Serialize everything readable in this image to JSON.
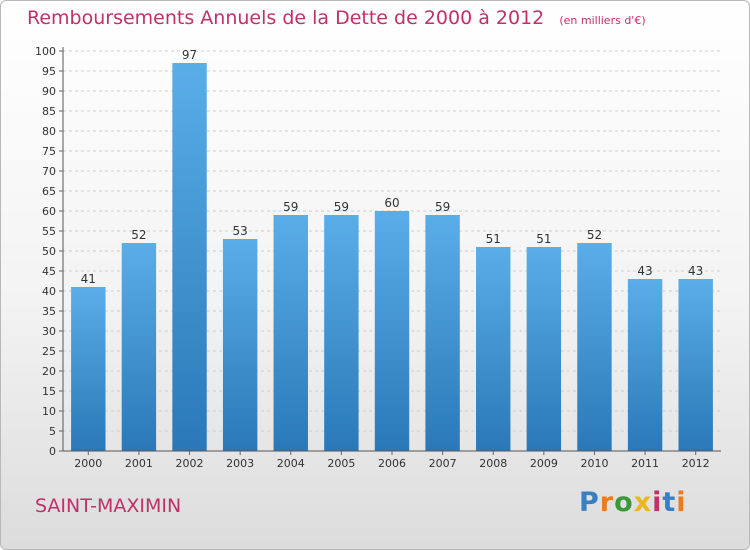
{
  "header": {
    "title": "Remboursements Annuels de la Dette de 2000 à 2012",
    "unit_note": "(en milliers d'€)"
  },
  "footer": {
    "commune": "SAINT-MAXIMIN",
    "logo": "Proxiti"
  },
  "colors": {
    "title": "#c0306a",
    "bar_top": "#5aaee8",
    "bar_bottom": "#2a78b8",
    "logo_letters": [
      "#3a7fc1",
      "#e87c1e",
      "#3a9a3a",
      "#e8b81e",
      "#c0306a",
      "#3a7fc1",
      "#e87c1e"
    ]
  },
  "chart_data": {
    "type": "bar",
    "categories": [
      "2000",
      "2001",
      "2002",
      "2003",
      "2004",
      "2005",
      "2006",
      "2007",
      "2008",
      "2009",
      "2010",
      "2011",
      "2012"
    ],
    "values": [
      41,
      52,
      97,
      53,
      59,
      59,
      60,
      59,
      51,
      51,
      52,
      43,
      43
    ],
    "title": "Remboursements Annuels de la Dette de 2000 à 2012",
    "ylim": [
      0,
      100
    ],
    "yticks": [
      0,
      5,
      10,
      15,
      20,
      25,
      30,
      35,
      40,
      45,
      50,
      55,
      60,
      65,
      70,
      75,
      80,
      85,
      90,
      95,
      100
    ],
    "grid": true,
    "data_labels": true
  }
}
